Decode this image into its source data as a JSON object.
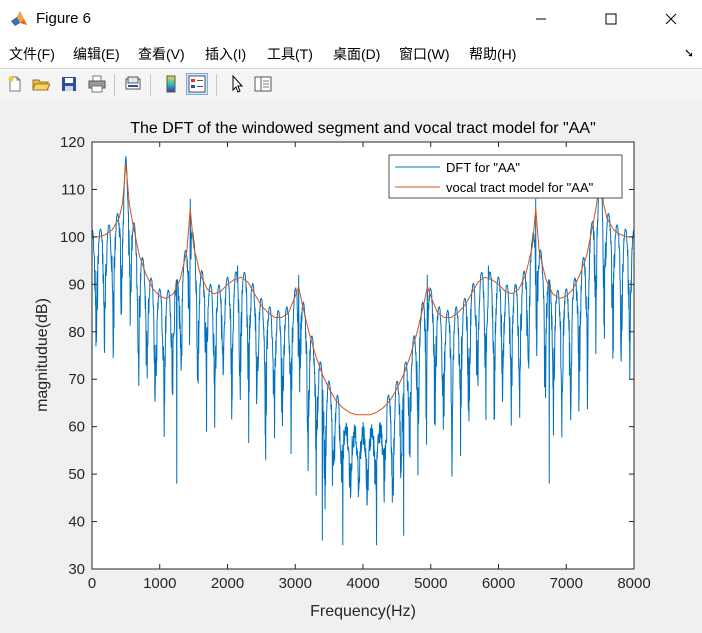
{
  "window": {
    "title": "Figure 6",
    "controls": {
      "minimize": "minimize",
      "maximize": "maximize",
      "close": "close"
    }
  },
  "menu": {
    "items": [
      "文件(F)",
      "编辑(E)",
      "查看(V)",
      "插入(I)",
      "工具(T)",
      "桌面(D)",
      "窗口(W)",
      "帮助(H)"
    ],
    "overflow_icon": "arrow-icon"
  },
  "toolbar": {
    "icons": [
      "new-figure-icon",
      "open-file-icon",
      "save-icon",
      "print-icon",
      "link-plot-icon",
      "colorbar-icon",
      "legend-icon",
      "pointer-icon",
      "property-inspector-icon"
    ]
  },
  "chart_data": {
    "type": "line",
    "title": "The DFT of the windowed segment and vocal tract model for \"AA\"",
    "xlabel": "Frequency(Hz)",
    "ylabel": "magnitudue(dB)",
    "xlim": [
      0,
      8000
    ],
    "ylim": [
      30,
      120
    ],
    "xticks": [
      0,
      1000,
      2000,
      3000,
      4000,
      5000,
      6000,
      7000,
      8000
    ],
    "yticks": [
      30,
      40,
      50,
      60,
      70,
      80,
      90,
      100,
      110,
      120
    ],
    "grid": false,
    "legend_position": "top-right",
    "series": [
      {
        "name": "DFT for \"AA\"",
        "color": "#0072bd",
        "description": "harmonic spectrum, fundamental spacing ~125 Hz; peaks follow the envelope, deep notches between harmonics",
        "harmonic_spacing_hz": 125,
        "peak_x": [
          500,
          1450,
          2150,
          3050,
          4000,
          4950,
          5850,
          6550,
          7500
        ],
        "peak_y": [
          117,
          108,
          94,
          92,
          61,
          92,
          94,
          108,
          117
        ],
        "min_dips": [
          [
            1250,
            48
          ],
          [
            3400,
            36
          ],
          [
            3700,
            35
          ],
          [
            4200,
            35
          ],
          [
            4600,
            37
          ],
          [
            6750,
            48
          ]
        ]
      },
      {
        "name": "vocal tract model for \"AA\"",
        "color": "#d95319",
        "x": [
          0,
          100,
          200,
          300,
          400,
          450,
          500,
          550,
          600,
          700,
          800,
          900,
          1000,
          1100,
          1200,
          1300,
          1400,
          1450,
          1500,
          1600,
          1700,
          1800,
          1900,
          2000,
          2100,
          2200,
          2300,
          2400,
          2500,
          2600,
          2700,
          2800,
          2900,
          3000,
          3050,
          3100,
          3200,
          3300,
          3400,
          3500,
          3600,
          3700,
          3800,
          3900,
          4000,
          4100,
          4200,
          4300,
          4400,
          4500,
          4600,
          4700,
          4800,
          4900,
          4950,
          5000,
          5100,
          5200,
          5300,
          5400,
          5500,
          5600,
          5700,
          5800,
          5900,
          6000,
          6100,
          6200,
          6300,
          6400,
          6500,
          6550,
          6600,
          6700,
          6800,
          6900,
          7000,
          7100,
          7200,
          7300,
          7400,
          7450,
          7500,
          7550,
          7600,
          7700,
          7800,
          7900,
          8000
        ],
        "y": [
          100,
          100,
          100.5,
          101.5,
          104,
          107,
          115.5,
          107,
          103,
          96,
          92,
          89,
          87.5,
          87,
          88,
          91,
          97,
          106,
          98,
          92,
          89,
          88,
          88.5,
          90,
          91,
          91.5,
          90.5,
          88,
          85.5,
          84,
          83,
          83,
          84,
          87.5,
          89.5,
          86,
          80,
          75,
          71,
          68,
          65.5,
          64,
          63,
          62.5,
          62.5,
          62.5,
          63,
          64,
          65.5,
          68,
          71,
          75,
          80,
          86,
          89.5,
          87.5,
          84,
          83,
          83,
          84,
          85.5,
          88,
          90.5,
          91.5,
          91,
          90,
          88.5,
          88,
          89,
          92,
          98,
          106,
          97,
          91,
          88,
          87,
          87.5,
          89,
          92,
          96,
          103,
          107,
          115.5,
          107,
          104,
          101.5,
          100.5,
          100,
          100
        ]
      }
    ]
  }
}
